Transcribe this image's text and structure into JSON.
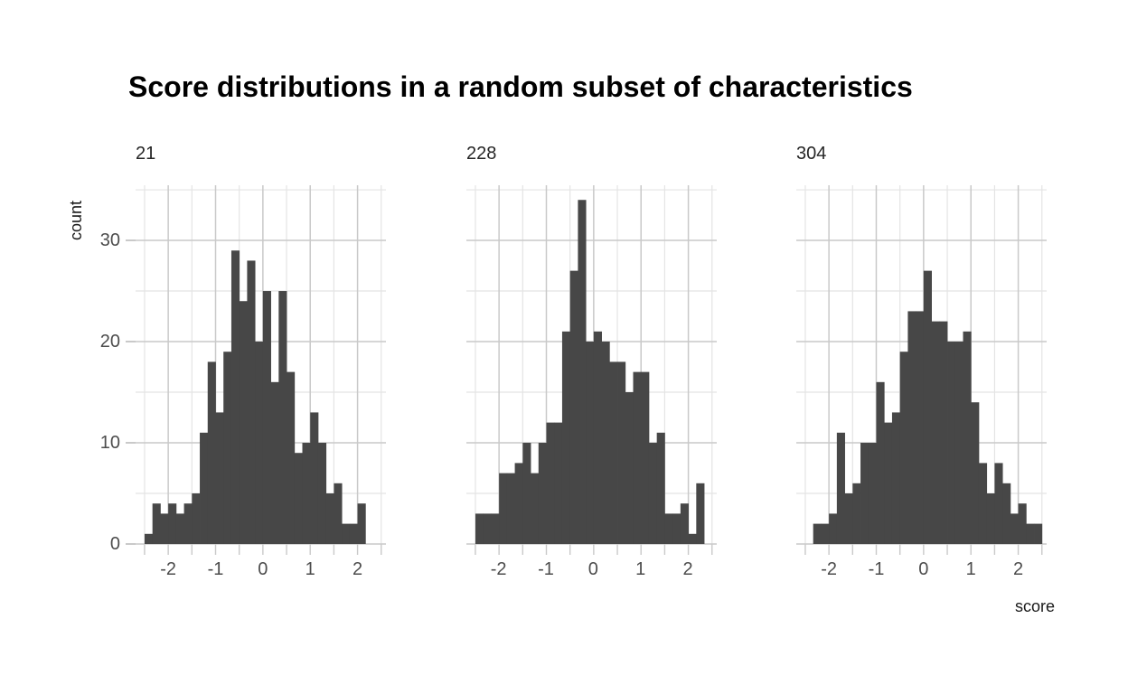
{
  "title": "Score distributions in a random subset of characteristics",
  "colors": {
    "background": "#ffffff",
    "bar": "#474747",
    "grid_major": "#c9c9c9",
    "grid_minor": "#e4e4e4",
    "tick_label": "#4d4d4d",
    "axis_title": "#1a1a1a",
    "facet_label": "#262626",
    "title_text": "#000000"
  },
  "chart_data": {
    "type": "bar",
    "subtype": "faceted-histograms",
    "title": "Score distributions in a random subset of characteristics",
    "xlabel": "score",
    "ylabel": "count",
    "legend_position": "none",
    "grid": "major+minor",
    "x_ticks": [
      -2,
      -1,
      0,
      1,
      2
    ],
    "y_ticks": [
      0,
      10,
      20,
      30
    ],
    "x_minor_breaks": [
      -2.5,
      -1.5,
      -0.5,
      0.5,
      1.5,
      2.5
    ],
    "y_minor_breaks": [
      5,
      15,
      25,
      35
    ],
    "xlim": [
      -2.69,
      2.6
    ],
    "ylim": [
      0,
      35.45
    ],
    "bin_width": 0.1666667,
    "facets": [
      {
        "label": "21",
        "bin_start": -2.5,
        "counts": [
          1,
          4,
          3,
          4,
          3,
          4,
          5,
          11,
          18,
          13,
          19,
          29,
          24,
          28,
          20,
          25,
          16,
          25,
          17,
          9,
          10,
          13,
          10,
          5,
          6,
          2,
          2,
          4
        ]
      },
      {
        "label": "228",
        "bin_start": -2.5,
        "counts": [
          3,
          3,
          3,
          7,
          7,
          8,
          10,
          7,
          10,
          12,
          12,
          21,
          27,
          34,
          20,
          21,
          20,
          18,
          18,
          15,
          17,
          17,
          10,
          11,
          3,
          3,
          4,
          1,
          6
        ]
      },
      {
        "label": "304",
        "bin_start": -2.3333333,
        "counts": [
          2,
          2,
          3,
          11,
          5,
          6,
          10,
          10,
          16,
          12,
          13,
          19,
          23,
          23,
          27,
          22,
          22,
          20,
          20,
          21,
          14,
          8,
          5,
          8,
          6,
          3,
          4,
          2,
          2
        ]
      }
    ]
  }
}
